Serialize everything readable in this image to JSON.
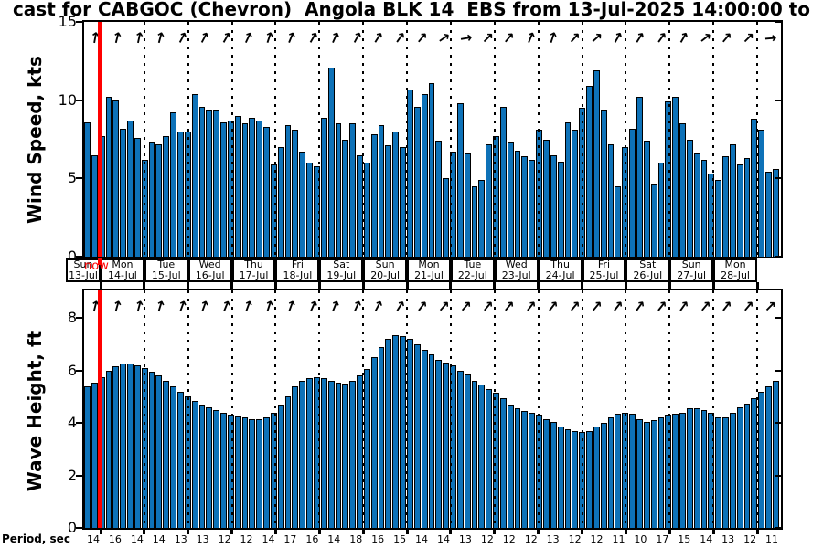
{
  "title": "cast for CABGOC (Chevron)  Angola BLK 14  EBS from 13-Jul-2025 14:00:00 to",
  "now_label": "now",
  "colors": {
    "bar_fill": "#0e72b8",
    "bar_edge": "#000000",
    "now_line": "#ff0000",
    "grid": "#000000"
  },
  "days": [
    {
      "dow": "Sun",
      "date": "13-Jul"
    },
    {
      "dow": "Mon",
      "date": "14-Jul"
    },
    {
      "dow": "Tue",
      "date": "15-Jul"
    },
    {
      "dow": "Wed",
      "date": "16-Jul"
    },
    {
      "dow": "Thu",
      "date": "17-Jul"
    },
    {
      "dow": "Fri",
      "date": "18-Jul"
    },
    {
      "dow": "Sat",
      "date": "19-Jul"
    },
    {
      "dow": "Sun",
      "date": "20-Jul"
    },
    {
      "dow": "Mon",
      "date": "21-Jul"
    },
    {
      "dow": "Tue",
      "date": "22-Jul"
    },
    {
      "dow": "Wed",
      "date": "23-Jul"
    },
    {
      "dow": "Thu",
      "date": "24-Jul"
    },
    {
      "dow": "Fri",
      "date": "25-Jul"
    },
    {
      "dow": "Sat",
      "date": "26-Jul"
    },
    {
      "dow": "Sun",
      "date": "27-Jul"
    },
    {
      "dow": "Mon",
      "date": "28-Jul"
    }
  ],
  "period": {
    "label": "Period, sec",
    "values": [
      14,
      16,
      14,
      14,
      13,
      13,
      12,
      12,
      14,
      17,
      16,
      14,
      18,
      16,
      15,
      14,
      14,
      13,
      12,
      12,
      12,
      13,
      12,
      12,
      11,
      10,
      17,
      15,
      14,
      13,
      12,
      11
    ]
  },
  "chart_data": [
    {
      "type": "bar",
      "title": "Wind Speed forecast",
      "ylabel": "Wind Speed, kts",
      "yticks": [
        0,
        5,
        10,
        15
      ],
      "ylim": [
        0,
        15
      ],
      "grid": "vertical dotted at day boundaries",
      "bar_interval_hours": 4,
      "values": [
        8.6,
        6.5,
        7.7,
        10.2,
        10.0,
        8.2,
        8.7,
        7.6,
        6.2,
        7.3,
        7.2,
        7.7,
        9.2,
        8.0,
        8.0,
        10.4,
        9.6,
        9.4,
        9.4,
        8.6,
        8.7,
        9.0,
        8.5,
        8.9,
        8.7,
        8.3,
        5.9,
        7.0,
        8.4,
        8.1,
        6.7,
        6.0,
        5.8,
        8.9,
        12.1,
        8.5,
        7.5,
        8.5,
        6.5,
        6.0,
        7.8,
        8.4,
        7.1,
        8.0,
        7.0,
        10.7,
        9.6,
        10.4,
        11.1,
        7.4,
        5.0,
        6.7,
        9.8,
        6.6,
        4.5,
        4.9,
        7.2,
        7.7,
        9.6,
        7.3,
        6.8,
        6.4,
        6.2,
        8.1,
        7.5,
        6.5,
        6.1,
        8.6,
        8.1,
        9.5,
        10.9,
        11.9,
        9.4,
        7.2,
        4.5,
        7.0,
        8.2,
        10.2,
        7.4,
        4.6,
        6.0,
        9.9,
        10.2,
        8.5,
        7.5,
        6.6,
        6.2,
        5.3,
        4.9,
        6.4,
        7.2,
        5.9,
        6.3,
        8.8,
        8.1,
        5.4,
        5.6
      ],
      "direction_arrows_deg_from_north": [
        10,
        14,
        12,
        15,
        28,
        28,
        30,
        25,
        18,
        22,
        30,
        24,
        28,
        32,
        35,
        40,
        55,
        80,
        45,
        40,
        22,
        18,
        42,
        48,
        30,
        32,
        35,
        30,
        52,
        40,
        45,
        85
      ]
    },
    {
      "type": "bar",
      "title": "Wave Height forecast",
      "ylabel": "Wave Height, ft",
      "yticks": [
        0,
        2,
        4,
        6,
        8
      ],
      "ylim": [
        0,
        9.05
      ],
      "grid": "vertical dotted at day boundaries",
      "bar_interval_hours": 4,
      "values": [
        5.4,
        5.55,
        5.75,
        6.0,
        6.15,
        6.25,
        6.25,
        6.2,
        6.1,
        5.95,
        5.8,
        5.6,
        5.4,
        5.2,
        5.0,
        4.85,
        4.7,
        4.6,
        4.5,
        4.4,
        4.3,
        4.25,
        4.2,
        4.15,
        4.15,
        4.2,
        4.4,
        4.7,
        5.0,
        5.4,
        5.6,
        5.7,
        5.75,
        5.7,
        5.6,
        5.55,
        5.5,
        5.6,
        5.8,
        6.05,
        6.5,
        6.9,
        7.2,
        7.35,
        7.3,
        7.2,
        7.0,
        6.8,
        6.6,
        6.4,
        6.3,
        6.2,
        6.0,
        5.85,
        5.6,
        5.45,
        5.3,
        5.15,
        4.95,
        4.7,
        4.55,
        4.45,
        4.4,
        4.3,
        4.15,
        4.05,
        3.85,
        3.75,
        3.7,
        3.65,
        3.7,
        3.85,
        4.0,
        4.2,
        4.35,
        4.4,
        4.35,
        4.15,
        4.05,
        4.1,
        4.2,
        4.3,
        4.35,
        4.4,
        4.55,
        4.55,
        4.5,
        4.4,
        4.2,
        4.2,
        4.4,
        4.6,
        4.75,
        4.95,
        5.2,
        5.4,
        5.6
      ],
      "direction_arrows_deg_from_north": [
        14,
        16,
        15,
        17,
        20,
        20,
        22,
        20,
        18,
        20,
        24,
        22,
        24,
        28,
        32,
        38,
        42,
        42,
        40,
        40,
        38,
        38,
        40,
        40,
        38,
        36,
        38,
        36,
        40,
        38,
        40,
        45
      ]
    }
  ]
}
